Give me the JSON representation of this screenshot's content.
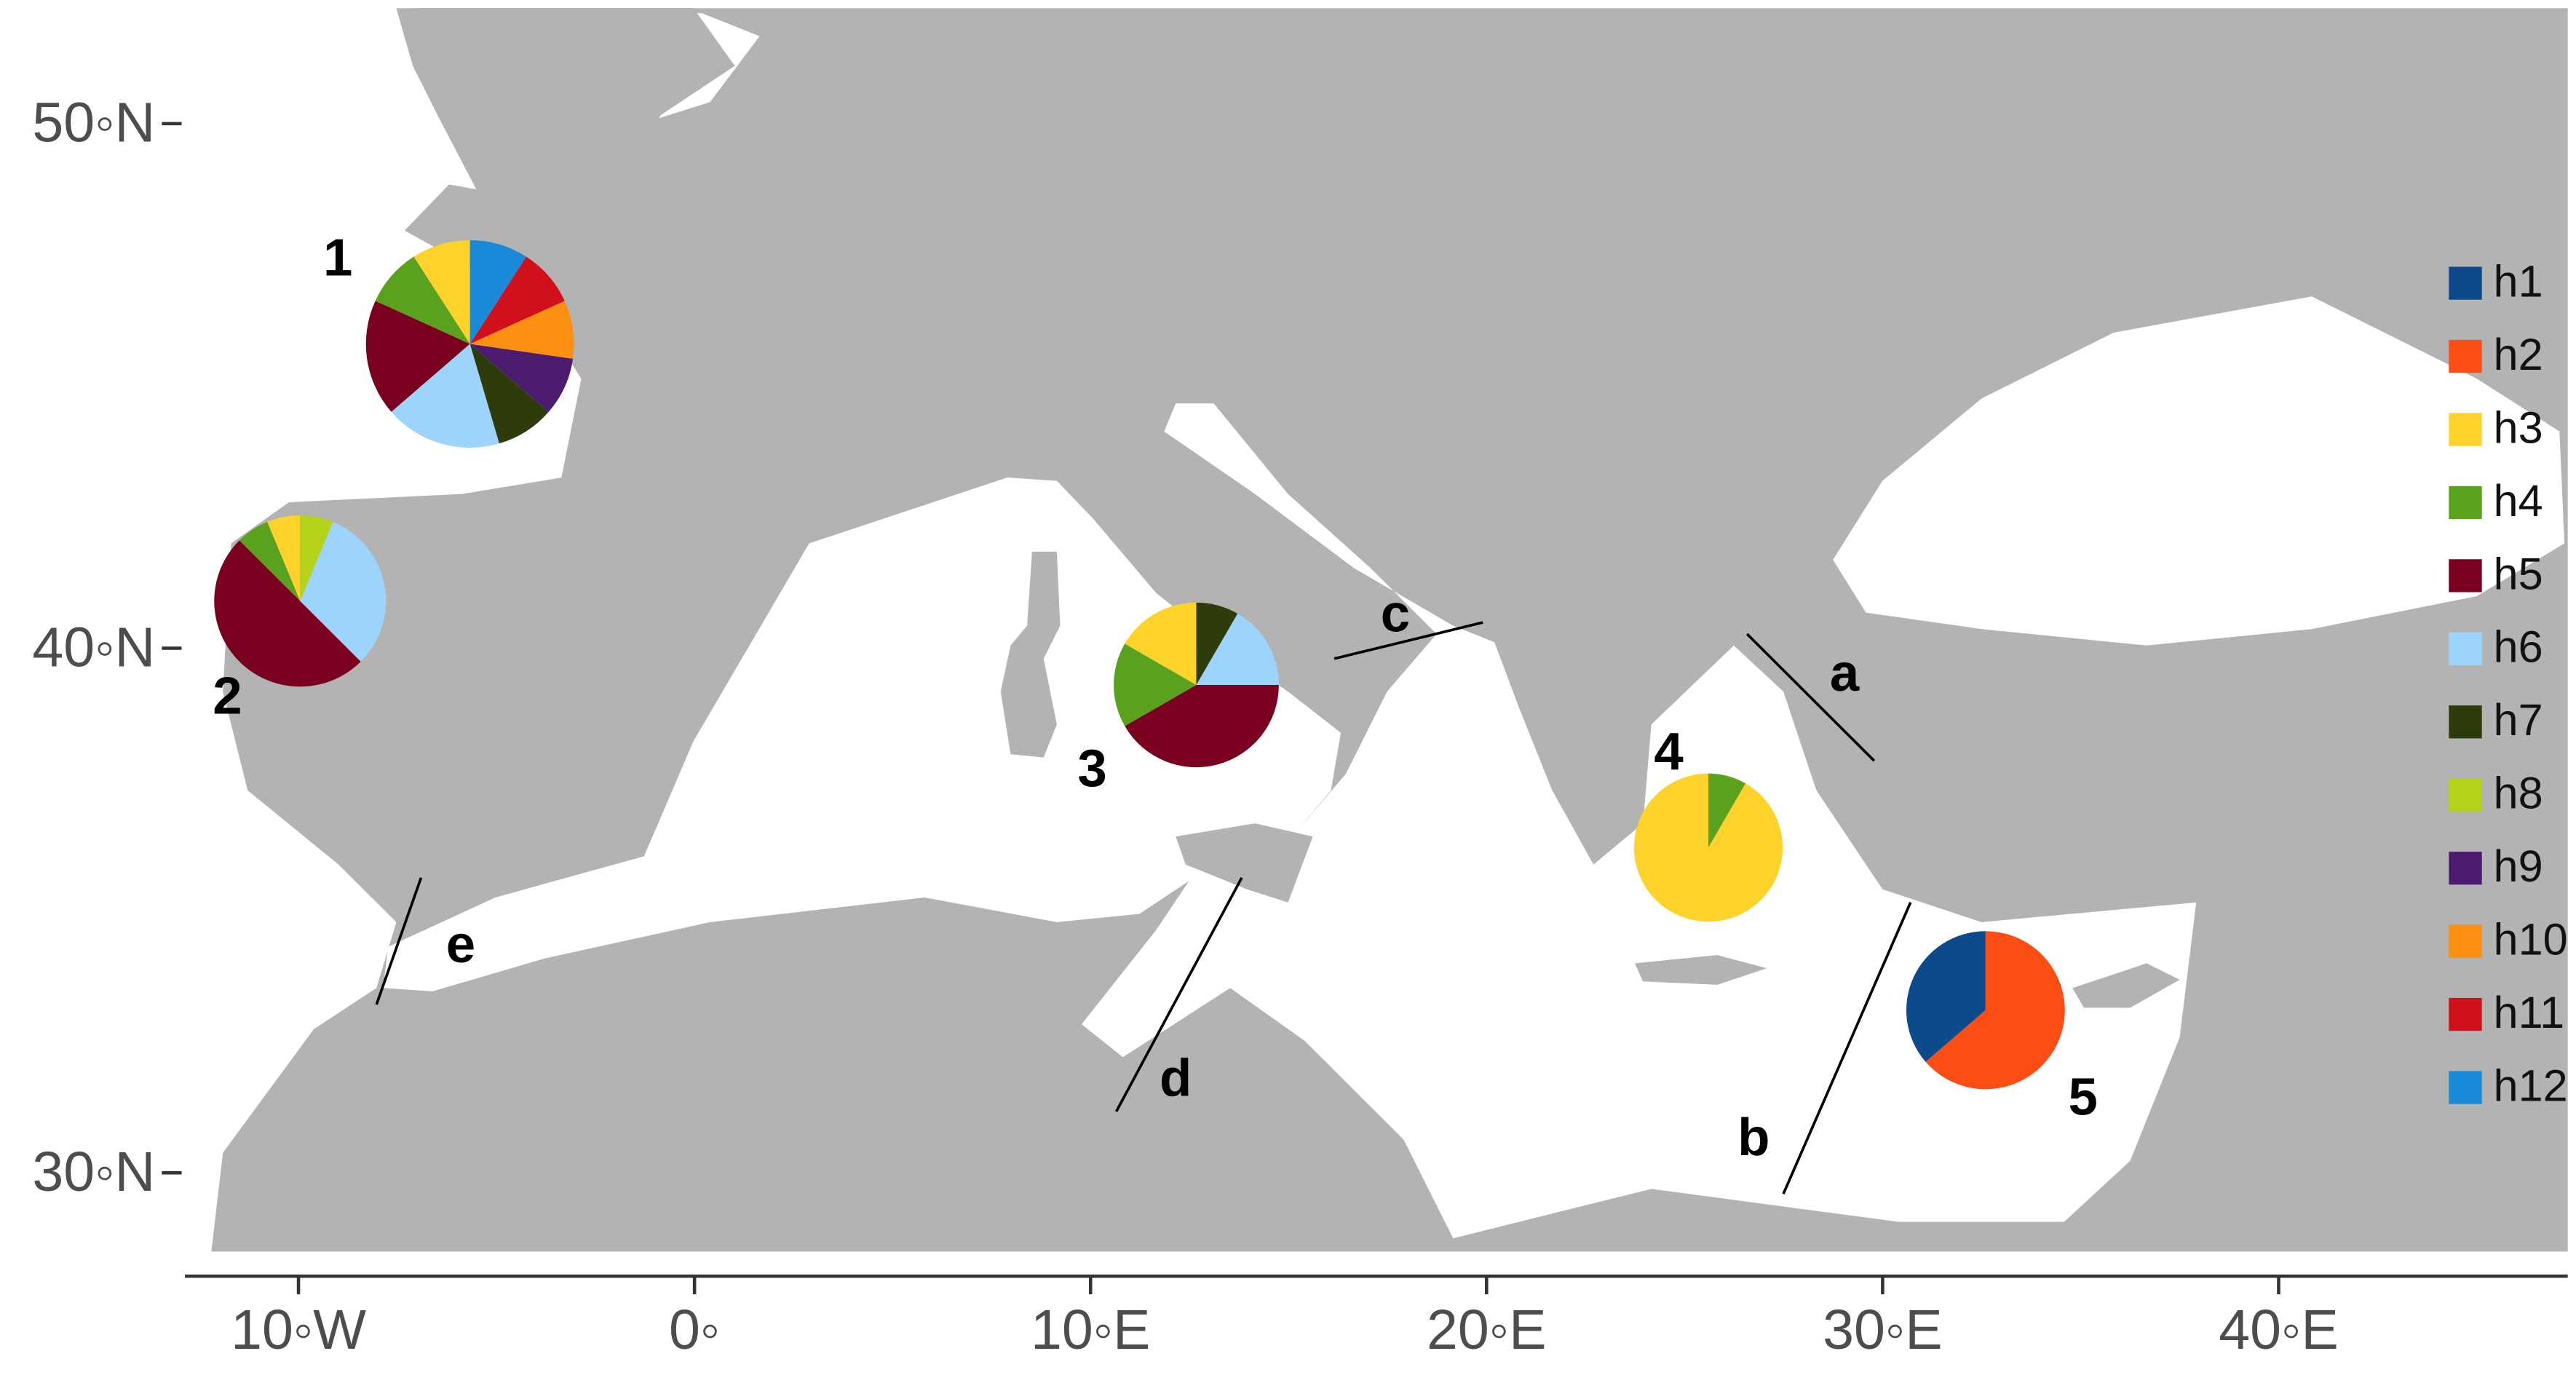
{
  "map": {
    "xlim": [
      -12.2,
      47.3
    ],
    "ylim": [
      28.5,
      52.2
    ],
    "xticks": [
      {
        "value": -10,
        "label": "10◦W"
      },
      {
        "value": 0,
        "label": "0◦"
      },
      {
        "value": 10,
        "label": "10◦E"
      },
      {
        "value": 20,
        "label": "20◦E"
      },
      {
        "value": 30,
        "label": "30◦E"
      },
      {
        "value": 40,
        "label": "40◦E"
      }
    ],
    "yticks": [
      {
        "value": 50,
        "label": "50◦N"
      },
      {
        "value": 40,
        "label": "40◦N"
      },
      {
        "value": 30,
        "label": "30◦N"
      }
    ],
    "legend": [
      {
        "name": "h1",
        "color": "#0c4a8c"
      },
      {
        "name": "h2",
        "color": "#fc4e14"
      },
      {
        "name": "h3",
        "color": "#fdd22a"
      },
      {
        "name": "h4",
        "color": "#5aa11e"
      },
      {
        "name": "h5",
        "color": "#7a0020"
      },
      {
        "name": "h6",
        "color": "#9dd4fb"
      },
      {
        "name": "h7",
        "color": "#2e3b0a"
      },
      {
        "name": "h8",
        "color": "#b6d21a"
      },
      {
        "name": "h9",
        "color": "#4b1b6e"
      },
      {
        "name": "h10",
        "color": "#fb8f12"
      },
      {
        "name": "h11",
        "color": "#d0101a"
      },
      {
        "name": "h12",
        "color": "#1a8ad8"
      }
    ],
    "sites": [
      {
        "label": "1",
        "lon": -5.67,
        "lat": 45.8,
        "values": [
          0,
          0,
          1,
          1,
          2,
          2,
          1,
          0,
          1,
          1,
          1,
          1
        ]
      },
      {
        "label": "2",
        "lon": -9.96,
        "lat": 40.9,
        "values": [
          0,
          0,
          1,
          1,
          8,
          5,
          0,
          1,
          0,
          0,
          0,
          0
        ]
      },
      {
        "label": "3",
        "lon": 12.67,
        "lat": 39.3,
        "values": [
          0,
          0,
          2,
          2,
          5,
          2,
          1,
          0,
          0,
          0,
          0,
          0
        ]
      },
      {
        "label": "4",
        "lon": 25.6,
        "lat": 36.2,
        "values": [
          0,
          0,
          11,
          1,
          0,
          0,
          0,
          0,
          0,
          0,
          0,
          0
        ]
      },
      {
        "label": "5",
        "lon": 32.6,
        "lat": 33.1,
        "values": [
          4,
          7,
          0,
          0,
          0,
          0,
          0,
          0,
          0,
          0,
          0,
          0
        ]
      }
    ],
    "barriers": [
      "a",
      "b",
      "c",
      "d",
      "e"
    ]
  }
}
